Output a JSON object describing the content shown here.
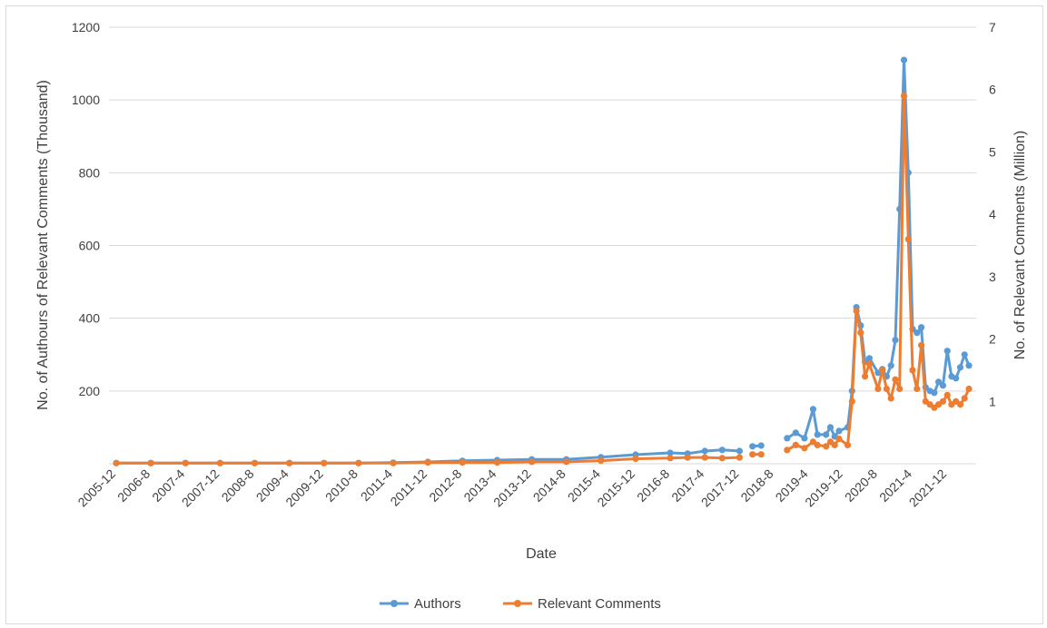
{
  "chart_data": {
    "type": "line",
    "title": "",
    "xlabel": "Date",
    "ylabel_left": "No. of Authours of Relevant Comments (Thousand)",
    "ylabel_right": "No. of Relevant Comments (Million)",
    "ylim_left": [
      0,
      1200
    ],
    "ylim_right": [
      0,
      7
    ],
    "yticks_left": [
      200,
      400,
      600,
      800,
      1000,
      1200
    ],
    "yticks_right": [
      1,
      2,
      3,
      4,
      5,
      6,
      7
    ],
    "grid": true,
    "legend_position": "bottom",
    "x_tick_labels": [
      "2005-12",
      "2006-8",
      "2007-4",
      "2007-12",
      "2008-8",
      "2009-4",
      "2009-12",
      "2010-8",
      "2011-4",
      "2011-12",
      "2012-8",
      "2013-4",
      "2013-12",
      "2014-8",
      "2015-4",
      "2015-12",
      "2016-8",
      "2017-4",
      "2017-12",
      "2018-8",
      "2019-4",
      "2019-12",
      "2020-8",
      "2021-4",
      "2021-12"
    ],
    "series": [
      {
        "name": "Authors",
        "axis": "left",
        "color": "#5b9bd5",
        "points": [
          [
            "2005-12",
            2
          ],
          [
            "2006-8",
            2
          ],
          [
            "2007-4",
            2
          ],
          [
            "2007-12",
            2
          ],
          [
            "2008-8",
            2
          ],
          [
            "2009-4",
            2
          ],
          [
            "2009-12",
            2
          ],
          [
            "2010-8",
            2
          ],
          [
            "2011-4",
            3
          ],
          [
            "2011-12",
            5
          ],
          [
            "2012-8",
            8
          ],
          [
            "2013-4",
            10
          ],
          [
            "2013-12",
            12
          ],
          [
            "2014-8",
            12
          ],
          [
            "2015-4",
            18
          ],
          [
            "2015-12",
            25
          ],
          [
            "2016-8",
            30
          ],
          [
            "2016-12",
            28
          ],
          [
            "2017-4",
            35
          ],
          [
            "2017-8",
            38
          ],
          [
            "2017-12",
            35
          ],
          null,
          [
            "2018-3",
            48
          ],
          [
            "2018-5",
            50
          ],
          null,
          [
            "2018-11",
            70
          ],
          [
            "2019-1",
            85
          ],
          [
            "2019-3",
            70
          ],
          [
            "2019-5",
            150
          ],
          [
            "2019-6",
            80
          ],
          [
            "2019-8",
            80
          ],
          [
            "2019-9",
            100
          ],
          [
            "2019-10",
            75
          ],
          [
            "2019-11",
            90
          ],
          [
            "2020-1",
            100
          ],
          [
            "2020-2",
            200
          ],
          [
            "2020-3",
            430
          ],
          [
            "2020-4",
            380
          ],
          [
            "2020-5",
            280
          ],
          [
            "2020-6",
            290
          ],
          [
            "2020-8",
            250
          ],
          [
            "2020-9",
            260
          ],
          [
            "2020-10",
            240
          ],
          [
            "2020-11",
            270
          ],
          [
            "2020-12",
            340
          ],
          [
            "2021-1",
            700
          ],
          [
            "2021-2",
            1110
          ],
          [
            "2021-3",
            800
          ],
          [
            "2021-4",
            370
          ],
          [
            "2021-5",
            360
          ],
          [
            "2021-6",
            375
          ],
          [
            "2021-7",
            210
          ],
          [
            "2021-8",
            200
          ],
          [
            "2021-9",
            195
          ],
          [
            "2021-10",
            225
          ],
          [
            "2021-11",
            215
          ],
          [
            "2021-12",
            310
          ],
          [
            "2022-1",
            240
          ],
          [
            "2022-2",
            235
          ],
          [
            "2022-3",
            265
          ],
          [
            "2022-4",
            300
          ],
          [
            "2022-5",
            270
          ]
        ]
      },
      {
        "name": "Relevant Comments",
        "axis": "right",
        "color": "#ed7d31",
        "points": [
          [
            "2005-12",
            0.01
          ],
          [
            "2006-8",
            0.01
          ],
          [
            "2007-4",
            0.01
          ],
          [
            "2007-12",
            0.01
          ],
          [
            "2008-8",
            0.01
          ],
          [
            "2009-4",
            0.01
          ],
          [
            "2009-12",
            0.01
          ],
          [
            "2010-8",
            0.01
          ],
          [
            "2011-4",
            0.01
          ],
          [
            "2011-12",
            0.02
          ],
          [
            "2012-8",
            0.02
          ],
          [
            "2013-4",
            0.02
          ],
          [
            "2013-12",
            0.03
          ],
          [
            "2014-8",
            0.03
          ],
          [
            "2015-4",
            0.05
          ],
          [
            "2015-12",
            0.08
          ],
          [
            "2016-8",
            0.09
          ],
          [
            "2016-12",
            0.1
          ],
          [
            "2017-4",
            0.1
          ],
          [
            "2017-8",
            0.09
          ],
          [
            "2017-12",
            0.1
          ],
          null,
          [
            "2018-3",
            0.15
          ],
          [
            "2018-5",
            0.15
          ],
          null,
          [
            "2018-11",
            0.22
          ],
          [
            "2019-1",
            0.3
          ],
          [
            "2019-3",
            0.25
          ],
          [
            "2019-5",
            0.35
          ],
          [
            "2019-6",
            0.3
          ],
          [
            "2019-8",
            0.28
          ],
          [
            "2019-9",
            0.35
          ],
          [
            "2019-10",
            0.3
          ],
          [
            "2019-11",
            0.4
          ],
          [
            "2020-1",
            0.3
          ],
          [
            "2020-2",
            1.0
          ],
          [
            "2020-3",
            2.45
          ],
          [
            "2020-4",
            2.1
          ],
          [
            "2020-5",
            1.4
          ],
          [
            "2020-6",
            1.6
          ],
          [
            "2020-8",
            1.2
          ],
          [
            "2020-9",
            1.5
          ],
          [
            "2020-10",
            1.2
          ],
          [
            "2020-11",
            1.05
          ],
          [
            "2020-12",
            1.35
          ],
          [
            "2021-1",
            1.2
          ],
          [
            "2021-2",
            5.9
          ],
          [
            "2021-3",
            3.6
          ],
          [
            "2021-4",
            1.5
          ],
          [
            "2021-5",
            1.2
          ],
          [
            "2021-6",
            1.9
          ],
          [
            "2021-7",
            1.0
          ],
          [
            "2021-8",
            0.95
          ],
          [
            "2021-9",
            0.9
          ],
          [
            "2021-10",
            0.95
          ],
          [
            "2021-11",
            1.0
          ],
          [
            "2021-12",
            1.1
          ],
          [
            "2022-1",
            0.95
          ],
          [
            "2022-2",
            1.0
          ],
          [
            "2022-3",
            0.95
          ],
          [
            "2022-4",
            1.05
          ],
          [
            "2022-5",
            1.2
          ]
        ]
      }
    ]
  }
}
